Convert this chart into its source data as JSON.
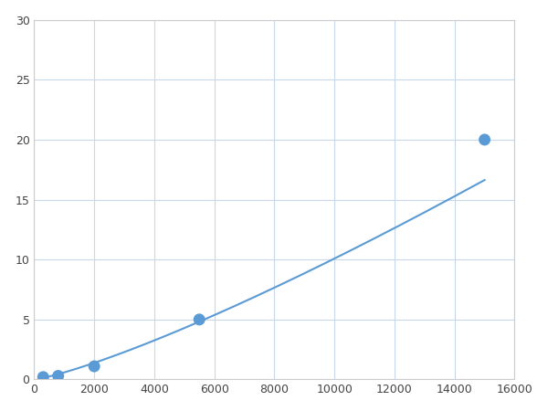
{
  "x": [
    300,
    800,
    2000,
    5500,
    15000
  ],
  "y": [
    0.2,
    0.3,
    1.1,
    5.0,
    20.0
  ],
  "line_color": "#5b9bd5",
  "marker_color": "#5b9bd5",
  "marker_size": 5,
  "line_width": 1.5,
  "xlim": [
    0,
    16000
  ],
  "ylim": [
    0,
    30
  ],
  "xticks": [
    0,
    2000,
    4000,
    6000,
    8000,
    10000,
    12000,
    14000,
    16000
  ],
  "yticks": [
    0,
    5,
    10,
    15,
    20,
    25,
    30
  ],
  "grid_color": "#c8d8e8",
  "background_color": "#ffffff",
  "spine_color": "#aaaaaa"
}
